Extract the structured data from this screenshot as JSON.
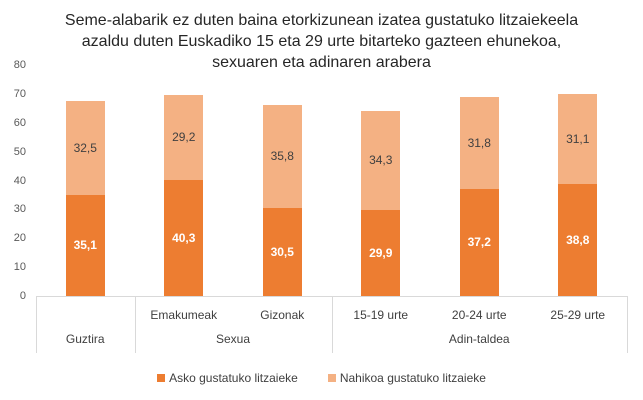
{
  "chart_data": {
    "type": "bar",
    "stacked": true,
    "title": "Seme-alabarik ez duten baina etorkizunean izatea gustatuko litzaiekeela azaldu duten Euskadiko 15 eta 29 urte bitarteko gazteen ehunekoa, sexuaren eta adinaren arabera",
    "title_lines": [
      "Seme-alabarik ez duten baina etorkizunean izatea gustatuko litzaiekeela",
      "azaldu duten Euskadiko 15 eta 29 urte bitarteko gazteen ehunekoa,",
      "sexuaren eta adinaren arabera"
    ],
    "categories": [
      "Guztira",
      "Emakumeak",
      "Gizonak",
      "15-19 urte",
      "20-24 urte",
      "25-29 urte"
    ],
    "category_groups": [
      {
        "label": "",
        "categories": [
          "Guztira"
        ]
      },
      {
        "label": "Sexua",
        "categories": [
          "Emakumeak",
          "Gizonak"
        ]
      },
      {
        "label": "Adin-taldea",
        "categories": [
          "15-19 urte",
          "20-24 urte",
          "25-29 urte"
        ]
      }
    ],
    "series": [
      {
        "name": "Asko gustatuko litzaieke",
        "color": "#ED7D31",
        "values": [
          35.1,
          40.3,
          30.5,
          29.9,
          37.2,
          38.8
        ],
        "labels": [
          "35,1",
          "40,3",
          "30,5",
          "29,9",
          "37,2",
          "38,8"
        ]
      },
      {
        "name": "Nahikoa gustatuko litzaieke",
        "color": "#F4B183",
        "values": [
          32.5,
          29.2,
          35.8,
          34.3,
          31.8,
          31.1
        ],
        "labels": [
          "32,5",
          "29,2",
          "35,8",
          "34,3",
          "31,8",
          "31,1"
        ]
      }
    ],
    "xlabel": "",
    "ylabel": "",
    "ylim": [
      0,
      80
    ],
    "yticks": [
      "0",
      "10",
      "20",
      "30",
      "40",
      "50",
      "60",
      "70",
      "80"
    ],
    "grid": false,
    "legend_position": "bottom"
  },
  "legend": {
    "items": [
      {
        "label": "Asko gustatuko litzaieke",
        "color": "#ED7D31"
      },
      {
        "label": "Nahikoa gustatuko litzaieke",
        "color": "#F4B183"
      }
    ]
  }
}
